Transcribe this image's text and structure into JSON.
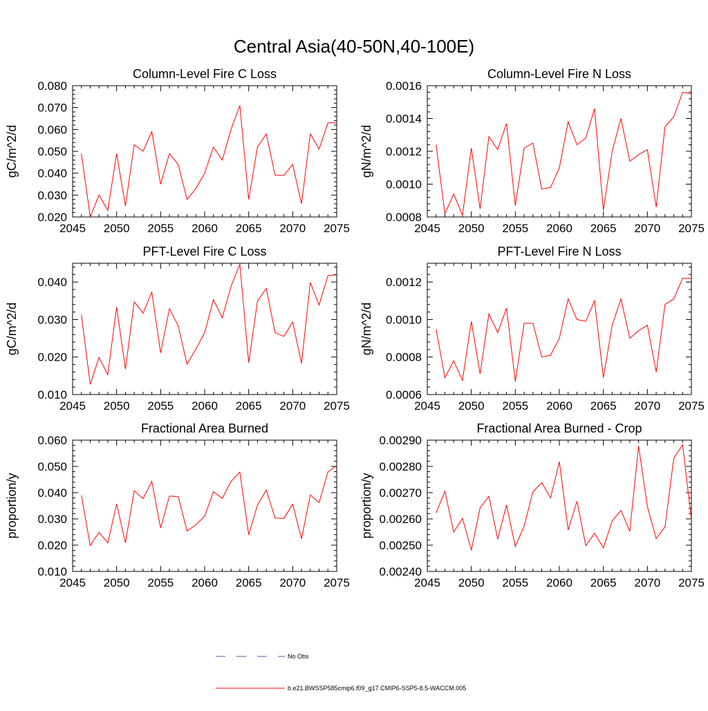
{
  "title": "Central Asia(40-50N,40-100E)",
  "colors": {
    "series": "#ff0000",
    "obs": "#4a5aa8",
    "axis": "#000000"
  },
  "legend": {
    "items": [
      {
        "label": "No Obs",
        "style": "dashed",
        "color": "#4a5aa8"
      },
      {
        "label": "b.e21.BWSSP585cmip6.f09_g17.CMIP6-SSP5-8.5-WACCM.005",
        "style": "solid",
        "color": "#ff0000"
      }
    ]
  },
  "chart_data": [
    {
      "type": "line",
      "title": "Column-Level Fire C Loss",
      "xlabel": "",
      "ylabel": "gC/m^2/d",
      "xlim": [
        2045,
        2075
      ],
      "ylim": [
        0.02,
        0.08
      ],
      "xticks": [
        "2045",
        "2050",
        "2055",
        "2060",
        "2065",
        "2070",
        "2075"
      ],
      "yticks": [
        "0.020",
        "0.030",
        "0.040",
        "0.050",
        "0.060",
        "0.070",
        "0.080"
      ],
      "x": [
        2046,
        2047,
        2048,
        2049,
        2050,
        2051,
        2052,
        2053,
        2054,
        2055,
        2056,
        2057,
        2058,
        2059,
        2060,
        2061,
        2062,
        2063,
        2064,
        2065,
        2066,
        2067,
        2068,
        2069,
        2070,
        2071,
        2072,
        2073,
        2074,
        2075
      ],
      "series": [
        {
          "values": [
            0.049,
            0.02,
            0.03,
            0.023,
            0.049,
            0.025,
            0.053,
            0.05,
            0.059,
            0.035,
            0.049,
            0.044,
            0.028,
            0.033,
            0.04,
            0.052,
            0.046,
            0.06,
            0.071,
            0.028,
            0.052,
            0.058,
            0.039,
            0.039,
            0.044,
            0.026,
            0.058,
            0.051,
            0.063,
            0.063
          ]
        }
      ]
    },
    {
      "type": "line",
      "title": "Column-Level Fire N Loss",
      "xlabel": "",
      "ylabel": "gN/m^2/d",
      "xlim": [
        2045,
        2075
      ],
      "ylim": [
        0.0008,
        0.0016
      ],
      "xticks": [
        "2045",
        "2050",
        "2055",
        "2060",
        "2065",
        "2070",
        "2075"
      ],
      "yticks": [
        "0.0008",
        "0.0010",
        "0.0012",
        "0.0014",
        "0.0016"
      ],
      "x": [
        2046,
        2047,
        2048,
        2049,
        2050,
        2051,
        2052,
        2053,
        2054,
        2055,
        2056,
        2057,
        2058,
        2059,
        2060,
        2061,
        2062,
        2063,
        2064,
        2065,
        2066,
        2067,
        2068,
        2069,
        2070,
        2071,
        2072,
        2073,
        2074,
        2075
      ],
      "series": [
        {
          "values": [
            0.00124,
            0.00082,
            0.00094,
            0.00081,
            0.00122,
            0.00085,
            0.00129,
            0.00121,
            0.00137,
            0.00087,
            0.00122,
            0.00125,
            0.00097,
            0.00098,
            0.0011,
            0.00138,
            0.00124,
            0.00128,
            0.00146,
            0.00084,
            0.0012,
            0.0014,
            0.00114,
            0.00118,
            0.00121,
            0.00086,
            0.00135,
            0.00141,
            0.00156,
            0.00155
          ]
        }
      ]
    },
    {
      "type": "line",
      "title": "PFT-Level Fire C Loss",
      "xlabel": "",
      "ylabel": "gC/m^2/d",
      "xlim": [
        2045,
        2075
      ],
      "ylim": [
        0.01,
        0.045
      ],
      "xticks": [
        "2045",
        "2050",
        "2055",
        "2060",
        "2065",
        "2070",
        "2075"
      ],
      "yticks": [
        "0.010",
        "0.020",
        "0.030",
        "0.040"
      ],
      "x": [
        2046,
        2047,
        2048,
        2049,
        2050,
        2051,
        2052,
        2053,
        2054,
        2055,
        2056,
        2057,
        2058,
        2059,
        2060,
        2061,
        2062,
        2063,
        2064,
        2065,
        2066,
        2067,
        2068,
        2069,
        2070,
        2071,
        2072,
        2073,
        2074,
        2075
      ],
      "series": [
        {
          "values": [
            0.0313,
            0.0127,
            0.0199,
            0.0153,
            0.0333,
            0.0168,
            0.0347,
            0.0317,
            0.0373,
            0.0211,
            0.0329,
            0.0283,
            0.0181,
            0.0221,
            0.0265,
            0.0353,
            0.0305,
            0.0389,
            0.0447,
            0.0185,
            0.0349,
            0.0383,
            0.0265,
            0.0255,
            0.0293,
            0.0183,
            0.0399,
            0.0339,
            0.0417,
            0.0419
          ]
        }
      ]
    },
    {
      "type": "line",
      "title": "PFT-Level Fire N Loss",
      "xlabel": "",
      "ylabel": "gN/m^2/d",
      "xlim": [
        2045,
        2075
      ],
      "ylim": [
        0.0006,
        0.0013
      ],
      "xticks": [
        "2045",
        "2050",
        "2055",
        "2060",
        "2065",
        "2070",
        "2075"
      ],
      "yticks": [
        "0.0006",
        "0.0008",
        "0.0010",
        "0.0012"
      ],
      "x": [
        2046,
        2047,
        2048,
        2049,
        2050,
        2051,
        2052,
        2053,
        2054,
        2055,
        2056,
        2057,
        2058,
        2059,
        2060,
        2061,
        2062,
        2063,
        2064,
        2065,
        2066,
        2067,
        2068,
        2069,
        2070,
        2071,
        2072,
        2073,
        2074,
        2075
      ],
      "series": [
        {
          "values": [
            0.00095,
            0.00069,
            0.00078,
            0.000675,
            0.00099,
            0.00071,
            0.00103,
            0.00093,
            0.00106,
            0.00067,
            0.00098,
            0.00098,
            0.0008,
            0.00081,
            0.0009,
            0.00111,
            0.001,
            0.00099,
            0.0011,
            0.00069,
            0.00097,
            0.00111,
            0.0009,
            0.00094,
            0.00097,
            0.00072,
            0.00108,
            0.00111,
            0.00122,
            0.00122
          ]
        }
      ]
    },
    {
      "type": "line",
      "title": "Fractional Area Burned",
      "xlabel": "",
      "ylabel": "proportion/y",
      "xlim": [
        2045,
        2075
      ],
      "ylim": [
        0.01,
        0.06
      ],
      "xticks": [
        "2045",
        "2050",
        "2055",
        "2060",
        "2065",
        "2070",
        "2075"
      ],
      "yticks": [
        "0.010",
        "0.020",
        "0.030",
        "0.040",
        "0.050",
        "0.060"
      ],
      "x": [
        2046,
        2047,
        2048,
        2049,
        2050,
        2051,
        2052,
        2053,
        2054,
        2055,
        2056,
        2057,
        2058,
        2059,
        2060,
        2061,
        2062,
        2063,
        2064,
        2065,
        2066,
        2067,
        2068,
        2069,
        2070,
        2071,
        2072,
        2073,
        2074,
        2075
      ],
      "series": [
        {
          "values": [
            0.039,
            0.0199,
            0.0249,
            0.0209,
            0.0357,
            0.0209,
            0.0407,
            0.0377,
            0.0443,
            0.0265,
            0.0387,
            0.0385,
            0.0254,
            0.0278,
            0.031,
            0.0404,
            0.0378,
            0.0443,
            0.0478,
            0.024,
            0.0353,
            0.041,
            0.0303,
            0.0302,
            0.0356,
            0.0224,
            0.0391,
            0.0362,
            0.0479,
            0.0503
          ]
        }
      ]
    },
    {
      "type": "line",
      "title": "Fractional Area Burned - Crop",
      "xlabel": "",
      "ylabel": "proportion/y",
      "xlim": [
        2045,
        2075
      ],
      "ylim": [
        0.0024,
        0.0029
      ],
      "xticks": [
        "2045",
        "2050",
        "2055",
        "2060",
        "2065",
        "2070",
        "2075"
      ],
      "yticks": [
        "0.00240",
        "0.00250",
        "0.00260",
        "0.00270",
        "0.00280",
        "0.00290"
      ],
      "x": [
        2046,
        2047,
        2048,
        2049,
        2050,
        2051,
        2052,
        2053,
        2054,
        2055,
        2056,
        2057,
        2058,
        2059,
        2060,
        2061,
        2062,
        2063,
        2064,
        2065,
        2066,
        2067,
        2068,
        2069,
        2070,
        2071,
        2072,
        2073,
        2074,
        2075
      ],
      "series": [
        {
          "values": [
            0.002623,
            0.002705,
            0.00255,
            0.002602,
            0.002481,
            0.002642,
            0.002686,
            0.002523,
            0.002653,
            0.002495,
            0.002573,
            0.002703,
            0.002738,
            0.00268,
            0.002818,
            0.002558,
            0.002667,
            0.002498,
            0.002545,
            0.00249,
            0.002592,
            0.002632,
            0.002553,
            0.002878,
            0.002648,
            0.002525,
            0.00257,
            0.002831,
            0.002883,
            0.002596
          ]
        }
      ]
    }
  ]
}
